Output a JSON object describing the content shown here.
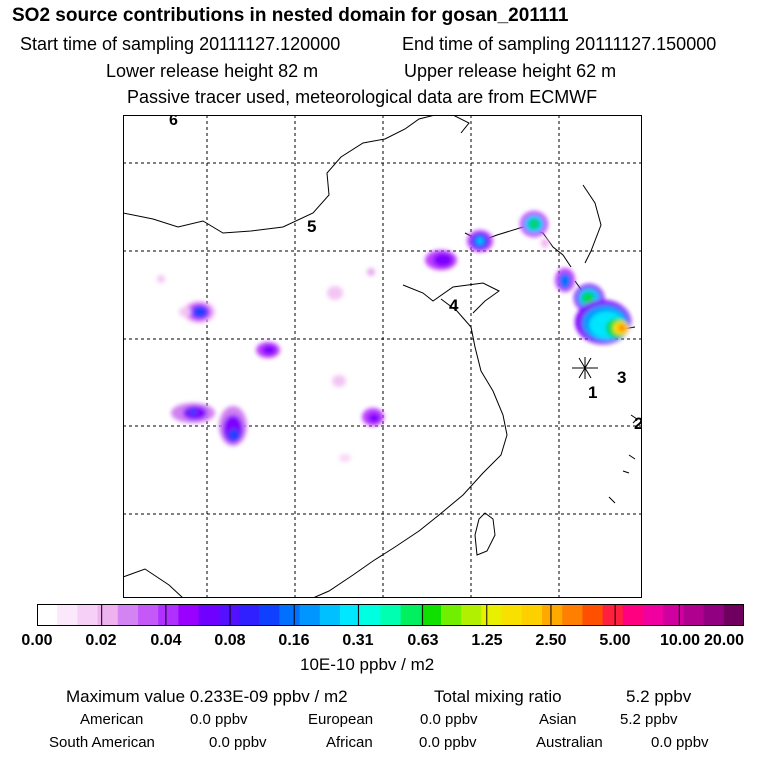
{
  "header": {
    "title": "SO2 source contributions in nested domain for gosan_201111",
    "start_time": "Start time of sampling 20111127.120000",
    "end_time": "End time of sampling 20111127.150000",
    "lower_height": "Lower release height   82 m",
    "upper_height": "Upper release height   62 m",
    "tracer_note": "Passive tracer used, meteorological data are from ECMWF"
  },
  "map": {
    "region_labels": [
      "6",
      "5",
      "4",
      "3",
      "2",
      "1"
    ],
    "receptor_marker": "asterisk-icon",
    "plume_colors": {
      "light": "#f3b5f3",
      "mid": "#c040ff",
      "violet": "#8000ff",
      "blue": "#2040ff",
      "cyan": "#00e5ff",
      "green": "#00d840",
      "yellow": "#ffe000",
      "orange": "#ff8c00"
    }
  },
  "colorbar": {
    "colors": [
      "#ffffff",
      "#fbe8fb",
      "#f6d0f6",
      "#eeb2ee",
      "#d484f2",
      "#c458f8",
      "#b030ff",
      "#9a00ff",
      "#7000ff",
      "#5410ff",
      "#3020ff",
      "#1040ff",
      "#0070ff",
      "#0096ff",
      "#00c0ff",
      "#00e8ff",
      "#00ffe0",
      "#00ffb0",
      "#00f060",
      "#10e000",
      "#70f000",
      "#b0f000",
      "#e8f000",
      "#f8e000",
      "#ffd000",
      "#ffa800",
      "#ff8000",
      "#ff5000",
      "#ff2040",
      "#ff0080",
      "#f000a0",
      "#d000a0",
      "#b00090",
      "#900080",
      "#700060"
    ],
    "tick_labels": [
      "0.00",
      "0.02",
      "0.04",
      "0.08",
      "0.16",
      "0.31",
      "0.63",
      "1.25",
      "2.50",
      "5.00",
      "10.00",
      "20.00"
    ],
    "unit": "10E-10 ppbv / m2"
  },
  "summary": {
    "max_value": "Maximum value  0.233E-09 ppbv / m2",
    "total_label": "Total mixing ratio",
    "total_value": "5.2 ppbv",
    "sources": [
      {
        "name": "American",
        "value": "0.0 ppbv"
      },
      {
        "name": "European",
        "value": "0.0 ppbv"
      },
      {
        "name": "Asian",
        "value": "5.2 ppbv"
      },
      {
        "name": "South American",
        "value": "0.0 ppbv"
      },
      {
        "name": "African",
        "value": "0.0 ppbv"
      },
      {
        "name": "Australian",
        "value": "0.0 ppbv"
      }
    ]
  }
}
